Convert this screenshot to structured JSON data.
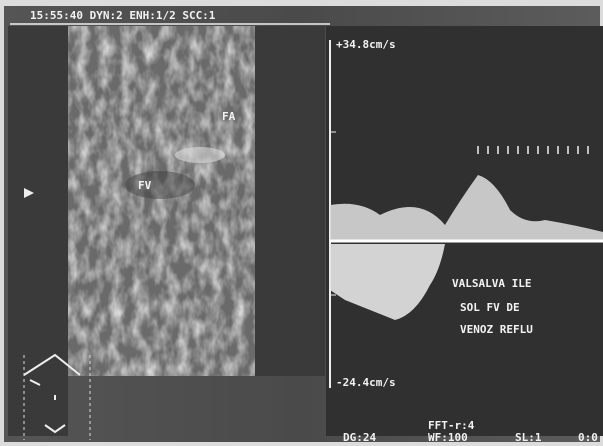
{
  "header": {
    "status": "15:55:40 DYN:2 ENH:1/2 SCC:1"
  },
  "bmode": {
    "labels": [
      "FA",
      "FV"
    ]
  },
  "doppler": {
    "scale_top": "+34.8cm/s",
    "scale_bottom": "-24.4cm/s",
    "annotation": [
      "VALSALVA ILE",
      "SOL FV DE",
      "VENOZ REFLU"
    ]
  },
  "footer": {
    "fft": "FFT-r:4",
    "dg": "DG:24",
    "wf": "WF:100",
    "sl": "SL:1",
    "extra": "0:0"
  }
}
